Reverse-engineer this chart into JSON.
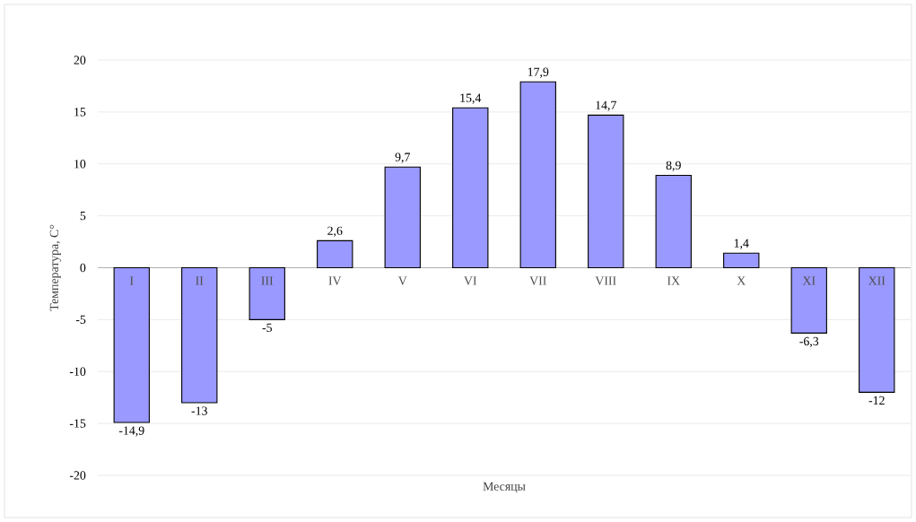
{
  "chart_data": {
    "type": "bar",
    "xlabel": "Месяцы",
    "ylabel": "Температура, С°",
    "categories": [
      "I",
      "II",
      "III",
      "IV",
      "V",
      "VI",
      "VII",
      "VIII",
      "IX",
      "X",
      "XI",
      "XII"
    ],
    "values": [
      -14.9,
      -13,
      -5,
      2.6,
      9.7,
      15.4,
      17.9,
      14.7,
      8.9,
      1.4,
      -6.3,
      -12
    ],
    "value_labels": [
      "-14,9",
      "-13",
      "-5",
      "2,6",
      "9,7",
      "15,4",
      "17,9",
      "14,7",
      "8,9",
      "1,4",
      "-6,3",
      "-12"
    ],
    "color": "#9999ff",
    "ylim": [
      -20,
      20
    ],
    "yticks": [
      -20,
      -15,
      -10,
      -5,
      0,
      5,
      10,
      15,
      20
    ],
    "grid": "y"
  }
}
